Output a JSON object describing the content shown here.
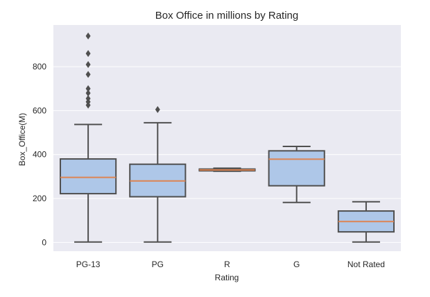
{
  "chart_data": {
    "type": "box",
    "title": "Box Office in millions by Rating",
    "xlabel": "Rating",
    "ylabel": "Box_Office(M)",
    "ylim": [
      -40,
      990
    ],
    "yticks": [
      0,
      200,
      400,
      600,
      800
    ],
    "grid": true,
    "categories": [
      "PG-13",
      "PG",
      "R",
      "G",
      "Not Rated"
    ],
    "boxes": [
      {
        "category": "PG-13",
        "whisker_low": 2,
        "q1": 222,
        "median": 296,
        "q3": 380,
        "whisker_high": 537,
        "outliers": [
          625,
          640,
          655,
          680,
          700,
          765,
          810,
          860,
          940
        ]
      },
      {
        "category": "PG",
        "whisker_low": 2,
        "q1": 208,
        "median": 280,
        "q3": 356,
        "whisker_high": 545,
        "outliers": [
          605
        ]
      },
      {
        "category": "R",
        "whisker_low": 324,
        "q1": 326,
        "median": 330,
        "q3": 334,
        "whisker_high": 338,
        "outliers": []
      },
      {
        "category": "G",
        "whisker_low": 182,
        "q1": 258,
        "median": 379,
        "q3": 417,
        "whisker_high": 437,
        "outliers": []
      },
      {
        "category": "Not Rated",
        "whisker_low": 2,
        "q1": 48,
        "median": 95,
        "q3": 143,
        "whisker_high": 185,
        "outliers": []
      }
    ],
    "colors": {
      "background": "#eaeaf2",
      "grid": "#ffffff",
      "box_fill": "#aec7e8",
      "box_edge": "#4f4f4f",
      "median": "#dd8452"
    }
  }
}
